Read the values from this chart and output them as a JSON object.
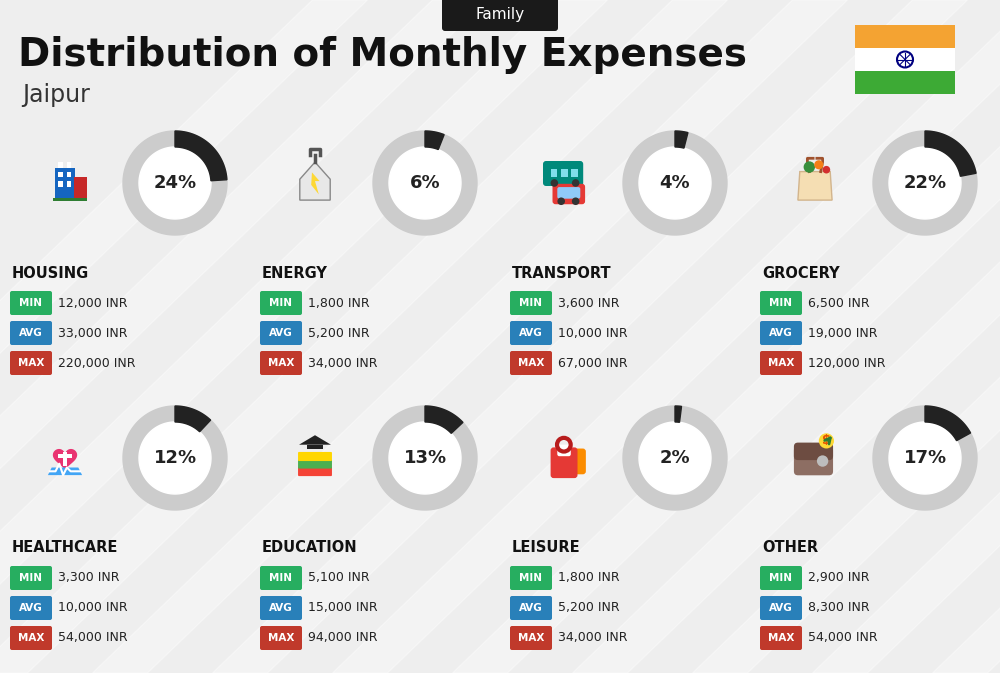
{
  "title": "Distribution of Monthly Expenses",
  "subtitle": "Family",
  "city": "Jaipur",
  "bg_color": "#eeeeee",
  "categories": [
    {
      "name": "HOUSING",
      "pct": 24,
      "min": "12,000 INR",
      "avg": "33,000 INR",
      "max": "220,000 INR",
      "row": 0,
      "col": 0
    },
    {
      "name": "ENERGY",
      "pct": 6,
      "min": "1,800 INR",
      "avg": "5,200 INR",
      "max": "34,000 INR",
      "row": 0,
      "col": 1
    },
    {
      "name": "TRANSPORT",
      "pct": 4,
      "min": "3,600 INR",
      "avg": "10,000 INR",
      "max": "67,000 INR",
      "row": 0,
      "col": 2
    },
    {
      "name": "GROCERY",
      "pct": 22,
      "min": "6,500 INR",
      "avg": "19,000 INR",
      "max": "120,000 INR",
      "row": 0,
      "col": 3
    },
    {
      "name": "HEALTHCARE",
      "pct": 12,
      "min": "3,300 INR",
      "avg": "10,000 INR",
      "max": "54,000 INR",
      "row": 1,
      "col": 0
    },
    {
      "name": "EDUCATION",
      "pct": 13,
      "min": "5,100 INR",
      "avg": "15,000 INR",
      "max": "94,000 INR",
      "row": 1,
      "col": 1
    },
    {
      "name": "LEISURE",
      "pct": 2,
      "min": "1,800 INR",
      "avg": "5,200 INR",
      "max": "34,000 INR",
      "row": 1,
      "col": 2
    },
    {
      "name": "OTHER",
      "pct": 17,
      "min": "2,900 INR",
      "avg": "8,300 INR",
      "max": "54,000 INR",
      "row": 1,
      "col": 3
    }
  ],
  "min_color": "#27ae60",
  "avg_color": "#2980b9",
  "max_color": "#c0392b",
  "arc_dark": "#222222",
  "arc_gray": "#cccccc",
  "india_saffron": "#F4A332",
  "india_white": "#FFFFFF",
  "india_green": "#3DAA35",
  "india_navy": "#000080",
  "stripe_color": "#ffffff",
  "badge_bg": "#1a1a1a",
  "title_color": "#111111",
  "city_color": "#333333",
  "cat_name_color": "#111111",
  "value_color": "#222222"
}
